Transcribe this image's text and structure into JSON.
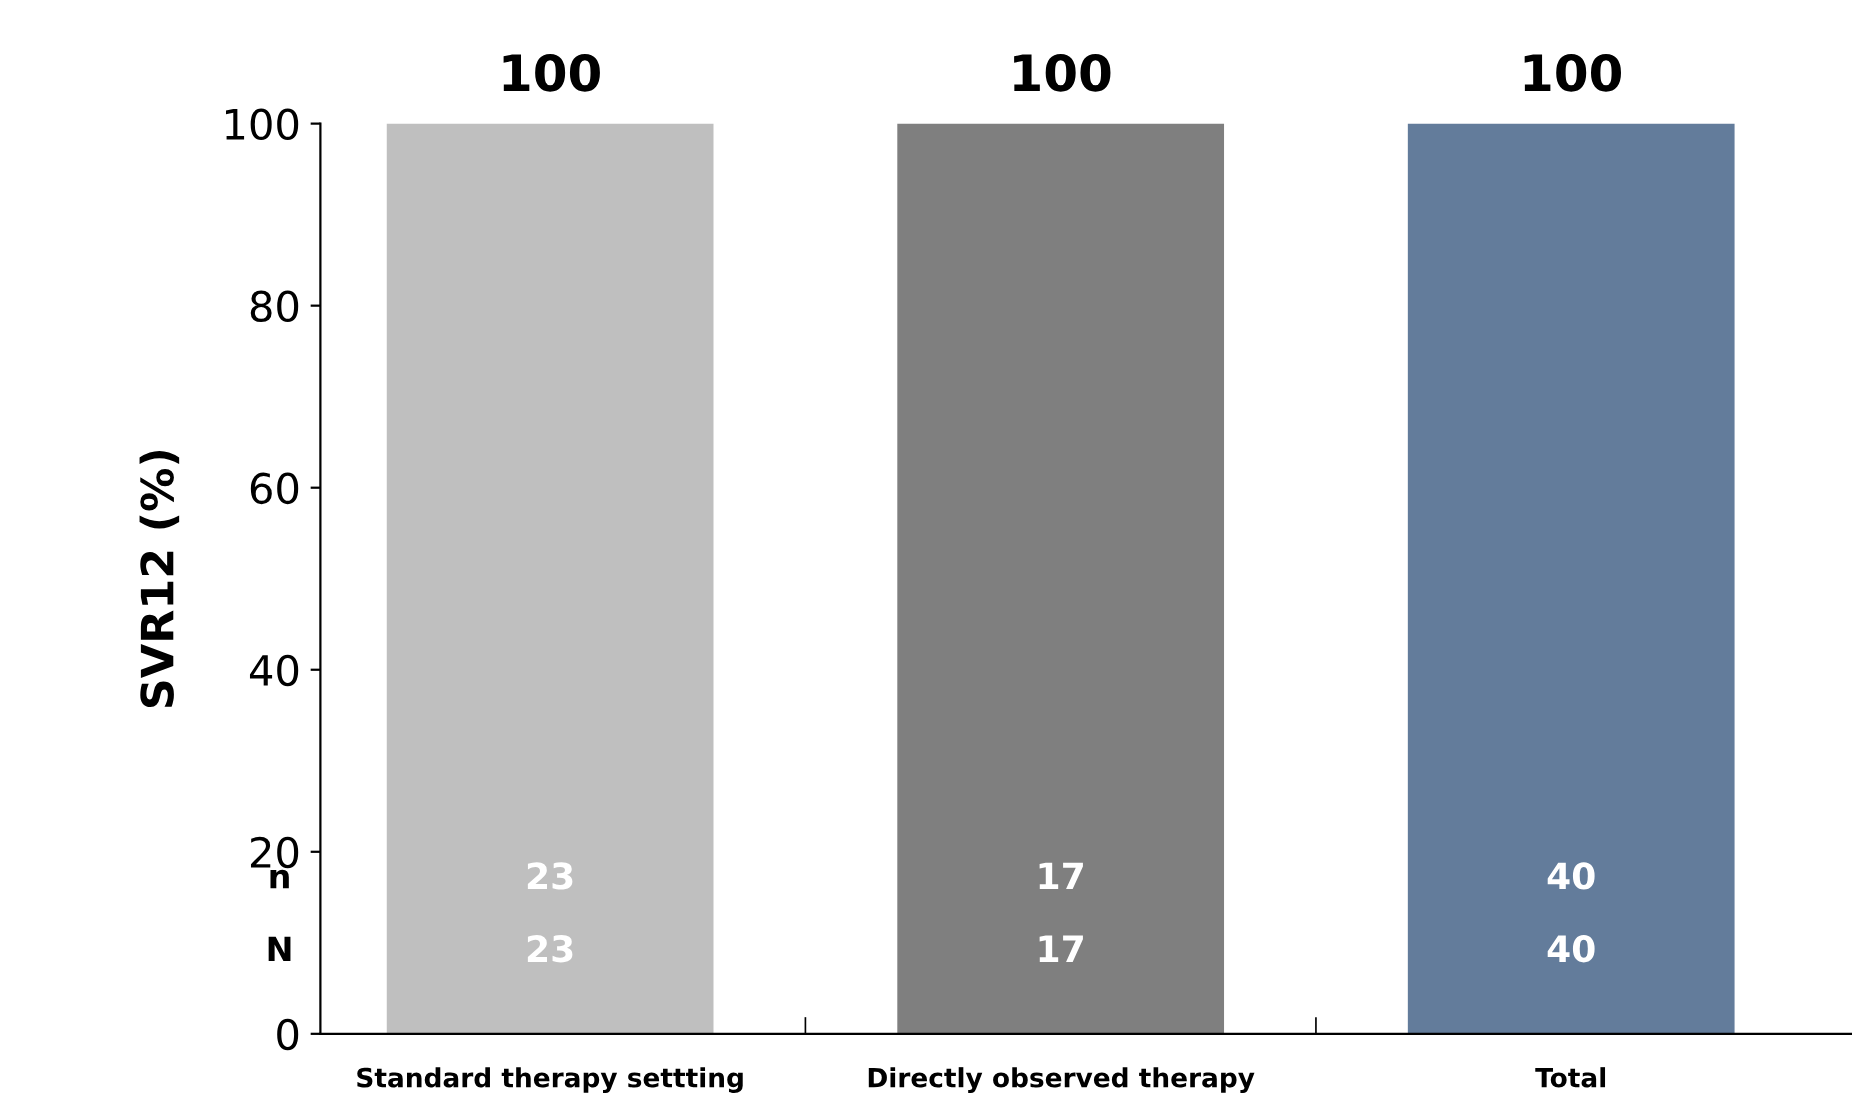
{
  "chart_data": {
    "type": "bar",
    "ylabel": "SVR12 (%)",
    "categories": [
      "Standard therapy settting",
      "Directly observed therapy",
      "Total"
    ],
    "values": [
      100,
      100,
      100
    ],
    "colors": [
      "#bfbfbf",
      "#7f7f7f",
      "#637c9b"
    ],
    "ylim": [
      0,
      100
    ],
    "yticks": [
      0,
      20,
      40,
      60,
      80,
      100
    ],
    "grid": false,
    "legend": false,
    "data_labels": true,
    "annotations": [
      "n",
      "N",
      "23",
      "23",
      "17",
      "17",
      "40",
      "40"
    ]
  }
}
